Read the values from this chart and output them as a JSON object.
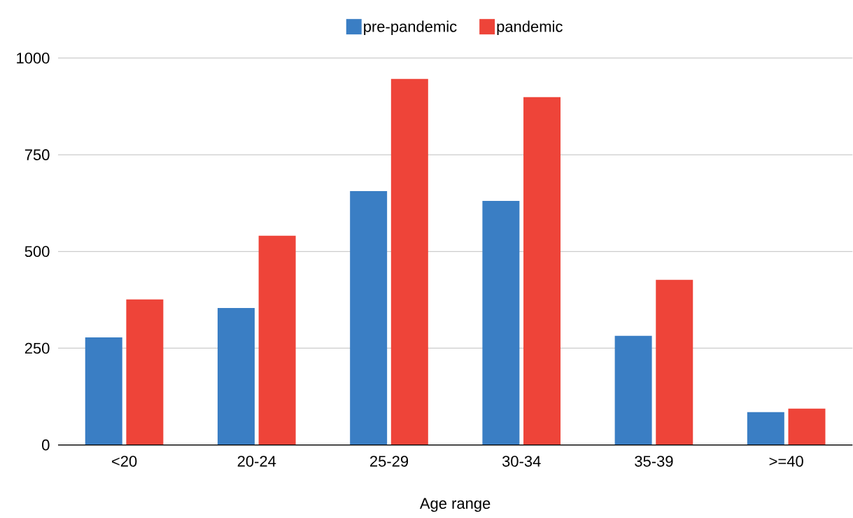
{
  "chart_data": {
    "type": "bar",
    "xlabel": "Age range",
    "categories": [
      "<20",
      "20-24",
      "25-29",
      "30-34",
      "35-39",
      ">=40"
    ],
    "series": [
      {
        "name": "pre-pandemic",
        "color": "#3a7ec4",
        "values": [
          278,
          354,
          656,
          631,
          282,
          85
        ]
      },
      {
        "name": "pandemic",
        "color": "#ee4439",
        "values": [
          376,
          541,
          946,
          899,
          427,
          94
        ]
      }
    ],
    "ylim": [
      0,
      1000
    ],
    "yticks": [
      0,
      250,
      500,
      750,
      1000
    ],
    "grid": "y",
    "legend": "top"
  }
}
